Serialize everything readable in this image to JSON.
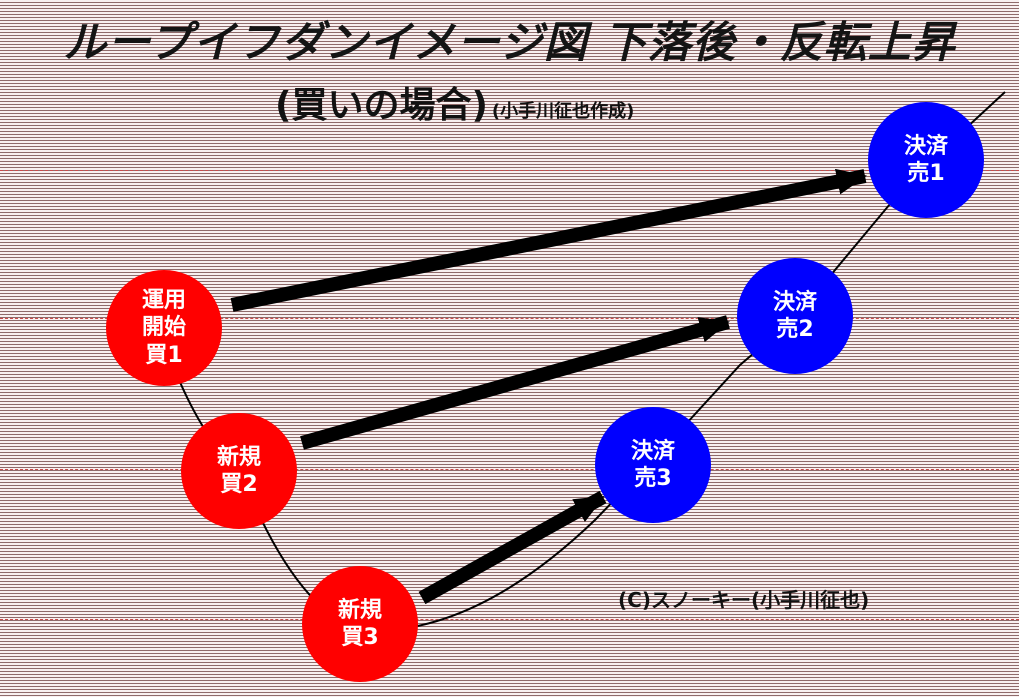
{
  "header": {
    "title": "ループイフダンイメージ図 下落後・反転上昇",
    "subtitle": "(買いの場合)",
    "author_note": "(小手川征也作成)"
  },
  "nodes": {
    "open_buy1": "運用\n開始\n買1",
    "buy2": "新規\n買2",
    "buy3": "新規\n買3",
    "sell1": "決済\n売1",
    "sell2": "決済\n売2",
    "sell3": "決済\n売3"
  },
  "colors": {
    "buy": "#ff0000",
    "sell": "#0000ff",
    "arrow": "#000000",
    "price_line": "#000000",
    "guide_line": "#c94a4a"
  },
  "copyright": "(C)スノーキー(小手川征也)"
}
